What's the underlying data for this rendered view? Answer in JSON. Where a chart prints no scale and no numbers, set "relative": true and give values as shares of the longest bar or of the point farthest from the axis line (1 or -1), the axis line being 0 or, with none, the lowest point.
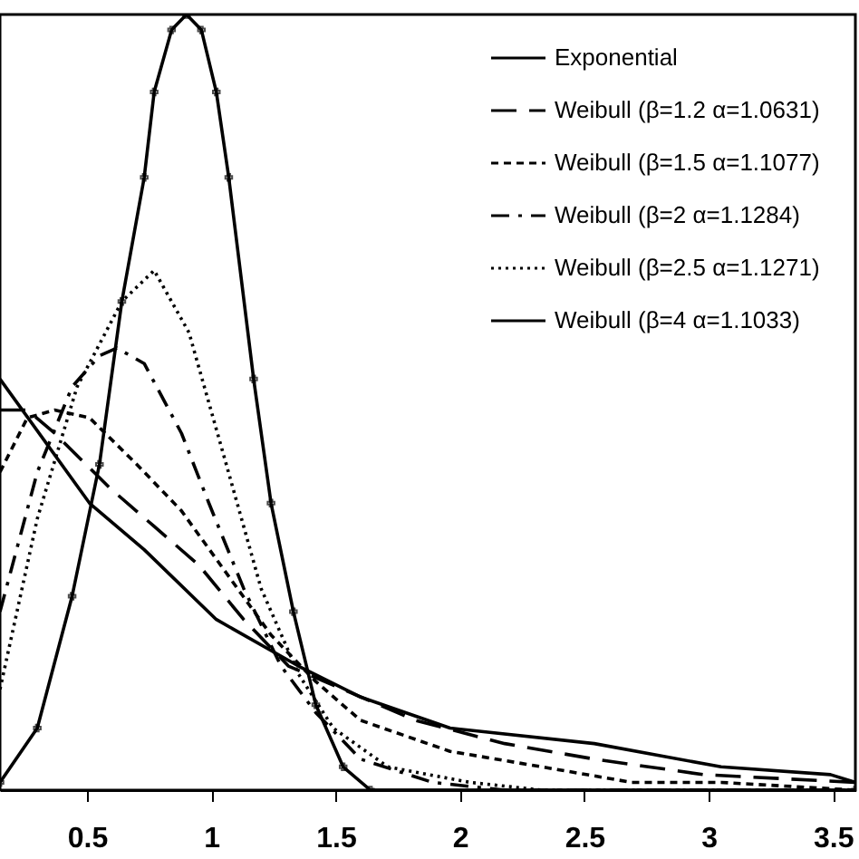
{
  "chart_data": {
    "type": "line",
    "relative": true,
    "xlim": [
      0.15,
      3.59
    ],
    "xticks": [
      0.5,
      1,
      1.5,
      2,
      2.5,
      3,
      3.5
    ],
    "grid": false,
    "legend": "top right",
    "series": [
      {
        "name": "Exponential",
        "color": "#000000",
        "line_style": "solid",
        "x": [
          0.15,
          0.51,
          0.73,
          1.02,
          1.35,
          1.6,
          1.96,
          2.54,
          3.05,
          3.49,
          3.59
        ],
        "values": [
          0.53,
          0.37,
          0.31,
          0.22,
          0.16,
          0.12,
          0.08,
          0.06,
          0.03,
          0.02,
          0.01
        ]
      },
      {
        "name": "Weibull  (β=1.2   α=1.0631)",
        "color": "#000000",
        "line_style": "dashed",
        "x": [
          0.15,
          0.26,
          0.37,
          0.59,
          0.77,
          0.95,
          1.13,
          1.31,
          1.53,
          1.82,
          2.18,
          2.54,
          2.98,
          3.59
        ],
        "values": [
          0.49,
          0.49,
          0.46,
          0.39,
          0.34,
          0.29,
          0.22,
          0.16,
          0.13,
          0.09,
          0.06,
          0.04,
          0.02,
          0.01
        ]
      },
      {
        "name": "Weibull  (β=1.5  α=1.1077)",
        "color": "#000000",
        "line_style": "shortdash",
        "x": [
          0.15,
          0.26,
          0.37,
          0.51,
          0.7,
          0.88,
          1.06,
          1.24,
          1.42,
          1.6,
          1.96,
          2.33,
          2.69,
          3.05,
          3.59
        ],
        "values": [
          0.41,
          0.48,
          0.49,
          0.48,
          0.42,
          0.36,
          0.28,
          0.2,
          0.14,
          0.09,
          0.05,
          0.03,
          0.01,
          0.01,
          0
        ]
      },
      {
        "name": "Weibull  (β=2    α=1.1284)",
        "color": "#000000",
        "line_style": "dashdot",
        "x": [
          0.15,
          0.3,
          0.44,
          0.55,
          0.62,
          0.73,
          0.88,
          0.99,
          1.13,
          1.28,
          1.42,
          1.6,
          1.89,
          2.18,
          3.59
        ],
        "values": [
          0.23,
          0.41,
          0.52,
          0.56,
          0.57,
          0.55,
          0.46,
          0.37,
          0.26,
          0.16,
          0.1,
          0.04,
          0.01,
          0,
          0
        ]
      },
      {
        "name": "Weibull  (β=2.5  α=1.1271)",
        "color": "#000000",
        "line_style": "dotted",
        "x": [
          0.15,
          0.3,
          0.46,
          0.64,
          0.77,
          0.91,
          1.06,
          1.2,
          1.35,
          1.49,
          1.71,
          2.04,
          2.33,
          3.59
        ],
        "values": [
          0.13,
          0.35,
          0.52,
          0.63,
          0.67,
          0.59,
          0.42,
          0.26,
          0.15,
          0.08,
          0.03,
          0.01,
          0,
          0
        ]
      },
      {
        "name": "Weibull  (β=4    α=1.1033)",
        "color": "#000000",
        "line_style": "solid",
        "marker": "cross",
        "x": [
          0.15,
          0.3,
          0.44,
          0.55,
          0.64,
          0.73,
          0.77,
          0.84,
          0.9,
          0.96,
          1.02,
          1.07,
          1.17,
          1.24,
          1.33,
          1.42,
          1.53,
          1.64,
          3.59
        ],
        "values": [
          0.01,
          0.08,
          0.25,
          0.42,
          0.63,
          0.79,
          0.9,
          0.98,
          1,
          0.98,
          0.9,
          0.79,
          0.53,
          0.37,
          0.23,
          0.11,
          0.03,
          0,
          0
        ]
      }
    ]
  }
}
